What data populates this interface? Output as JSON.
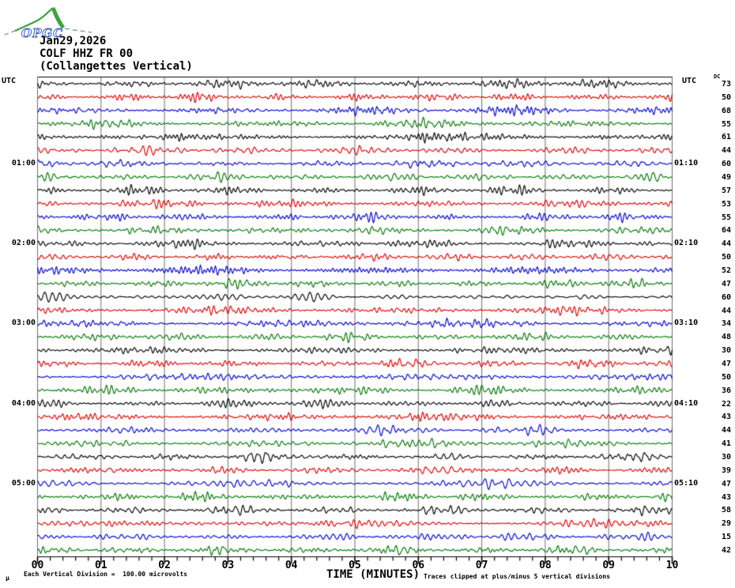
{
  "logo": {
    "text": "OPGC"
  },
  "header": {
    "date": "Jan29,2026",
    "station": "COLF HHZ FR 00",
    "station_name": "(Collangettes Vertical)"
  },
  "axis_labels": {
    "utc_left": "UTC",
    "utc_right": "UTC",
    "dc_header": "DC"
  },
  "footer": {
    "micro_mark": "μ",
    "scale_note": "Each Vertical Division =  100.00 microvolts",
    "time_axis_label": "TIME (MINUTES)",
    "clip_note": "Traces clipped at plus/minus 5 vertical divisions"
  },
  "chart_data": {
    "type": "line",
    "subtype": "helicorder-seismogram",
    "title": "COLF HHZ FR 00 (Collangettes Vertical) Jan29,2026",
    "xlabel": "TIME (MINUTES)",
    "x_ticks": [
      "00",
      "01",
      "02",
      "03",
      "04",
      "05",
      "06",
      "07",
      "08",
      "09",
      "10"
    ],
    "x_range_minutes": [
      0,
      10
    ],
    "minor_ticks_per_minute": 5,
    "rows": 36,
    "minutes_per_row": 10,
    "row_start_times": [
      "00:00",
      "00:10",
      "00:20",
      "00:30",
      "00:40",
      "00:50",
      "01:00",
      "01:10",
      "01:20",
      "01:30",
      "01:40",
      "01:50",
      "02:00",
      "02:10",
      "02:20",
      "02:30",
      "02:40",
      "02:50",
      "03:00",
      "03:10",
      "03:20",
      "03:30",
      "03:40",
      "03:50",
      "04:00",
      "04:10",
      "04:20",
      "04:30",
      "04:40",
      "04:50",
      "05:00",
      "05:10",
      "05:20",
      "05:30",
      "05:40",
      "05:50"
    ],
    "left_hour_labels": [
      {
        "row_index": 6,
        "label": "01:00"
      },
      {
        "row_index": 12,
        "label": "02:00"
      },
      {
        "row_index": 18,
        "label": "03:00"
      },
      {
        "row_index": 24,
        "label": "04:00"
      },
      {
        "row_index": 30,
        "label": "05:00"
      }
    ],
    "right_hour_labels": [
      {
        "row_index": 6,
        "label": "01:10"
      },
      {
        "row_index": 12,
        "label": "02:10"
      },
      {
        "row_index": 18,
        "label": "03:10"
      },
      {
        "row_index": 24,
        "label": "04:10"
      },
      {
        "row_index": 30,
        "label": "05:10"
      }
    ],
    "dc_values": [
      73,
      50,
      68,
      55,
      61,
      44,
      60,
      49,
      57,
      53,
      55,
      64,
      44,
      50,
      52,
      47,
      60,
      44,
      34,
      48,
      30,
      47,
      50,
      36,
      22,
      43,
      44,
      41,
      30,
      39,
      47,
      43,
      58,
      29,
      15,
      42
    ],
    "trace_colors_cycle": [
      "#000000",
      "#dd0000",
      "#0000cc",
      "#007700"
    ],
    "grid_color": "#6e6e6e",
    "axis_color": "#000000",
    "clip_divisions": 5,
    "volts_per_division": "100.00 microvolts",
    "legend_position": "none",
    "grid": "vertical-minute-lines"
  }
}
